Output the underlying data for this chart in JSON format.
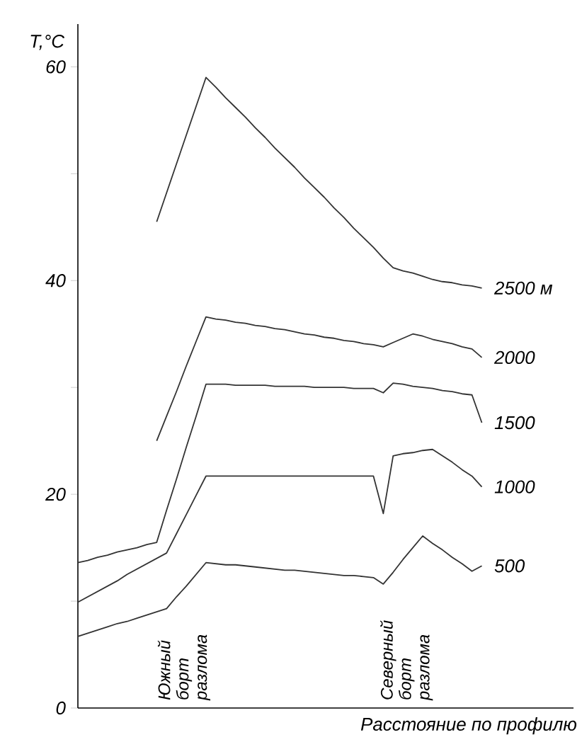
{
  "chart_data": {
    "type": "line",
    "xlabel": "Расстояние по профилю",
    "ylabel": "T,°C",
    "categories": [
      null,
      null,
      null,
      null,
      null,
      null,
      null,
      null,
      null,
      null,
      null,
      null,
      null,
      null,
      null,
      null,
      null,
      null,
      null,
      null,
      null,
      null,
      null,
      null,
      null,
      null,
      null,
      null,
      null,
      null,
      null,
      null,
      null,
      null,
      null,
      null,
      null,
      null,
      null,
      null,
      null,
      null
    ],
    "ylim": [
      0,
      64
    ],
    "yticks": [
      0,
      {
        "value": 10,
        "label": null
      },
      20,
      {
        "value": 30,
        "label": null
      },
      40,
      {
        "value": 50,
        "label": null
      },
      60
    ],
    "tick_labels": "y",
    "grid": false,
    "legend": false,
    "marker": "none",
    "line_style": "solid",
    "series": [
      {
        "name": "2500 м",
        "color": "#333333",
        "values": [
          null,
          null,
          null,
          null,
          null,
          null,
          null,
          null,
          45.5,
          48.2,
          50.9,
          53.6,
          56.3,
          59,
          58.1,
          57.1,
          56.2,
          55.3,
          54.3,
          53.4,
          52.4,
          51.5,
          50.6,
          49.6,
          48.7,
          47.8,
          46.8,
          45.9,
          44.9,
          44.0,
          43.1,
          42.1,
          41.2,
          40.9,
          40.7,
          40.4,
          40.1,
          39.9,
          39.8,
          39.6,
          39.5,
          39.3
        ]
      },
      {
        "name": "2000",
        "color": "#333333",
        "values": [
          null,
          null,
          null,
          null,
          null,
          null,
          null,
          null,
          25,
          27.3,
          29.6,
          32.0,
          34.3,
          36.6,
          36.4,
          36.3,
          36.1,
          36.0,
          35.8,
          35.7,
          35.5,
          35.4,
          35.2,
          35.0,
          34.9,
          34.7,
          34.6,
          34.4,
          34.3,
          34.1,
          34.0,
          33.8,
          34.2,
          34.6,
          35.0,
          34.8,
          34.5,
          34.3,
          34.1,
          33.8,
          33.6,
          32.8
        ]
      },
      {
        "name": "1500",
        "color": "#333333",
        "values": [
          13.6,
          13.8,
          14.1,
          14.3,
          14.6,
          14.8,
          15.0,
          15.3,
          15.5,
          18.5,
          21.4,
          24.4,
          27.3,
          30.3,
          30.3,
          30.3,
          30.2,
          30.2,
          30.2,
          30.2,
          30.1,
          30.1,
          30.1,
          30.1,
          30.0,
          30.0,
          30.0,
          30.0,
          29.9,
          29.9,
          29.9,
          29.5,
          30.4,
          30.3,
          30.1,
          30.0,
          29.9,
          29.7,
          29.6,
          29.4,
          29.3,
          26.7
        ]
      },
      {
        "name": "1000",
        "color": "#333333",
        "values": [
          9.9,
          10.4,
          10.9,
          11.4,
          11.9,
          12.5,
          13.0,
          13.5,
          14.0,
          14.5,
          16.3,
          18.1,
          19.9,
          21.7,
          21.7,
          21.7,
          21.7,
          21.7,
          21.7,
          21.7,
          21.7,
          21.7,
          21.7,
          21.7,
          21.7,
          21.7,
          21.7,
          21.7,
          21.7,
          21.7,
          21.7,
          18.2,
          23.6,
          23.8,
          23.9,
          24.1,
          24.2,
          23.6,
          23.0,
          22.3,
          21.7,
          20.7
        ]
      },
      {
        "name": "500",
        "color": "#333333",
        "values": [
          6.7,
          7.0,
          7.3,
          7.6,
          7.9,
          8.1,
          8.4,
          8.7,
          9.0,
          9.3,
          10.4,
          11.4,
          12.5,
          13.6,
          13.5,
          13.4,
          13.4,
          13.3,
          13.2,
          13.1,
          13.0,
          12.9,
          12.9,
          12.8,
          12.7,
          12.6,
          12.5,
          12.4,
          12.4,
          12.3,
          12.2,
          11.6,
          12.7,
          13.9,
          15.0,
          16.1,
          15.4,
          14.8,
          14.1,
          13.5,
          12.8,
          13.3
        ]
      }
    ],
    "annotations": [
      "Южный борт разлома",
      "Северный борт разлома"
    ]
  }
}
